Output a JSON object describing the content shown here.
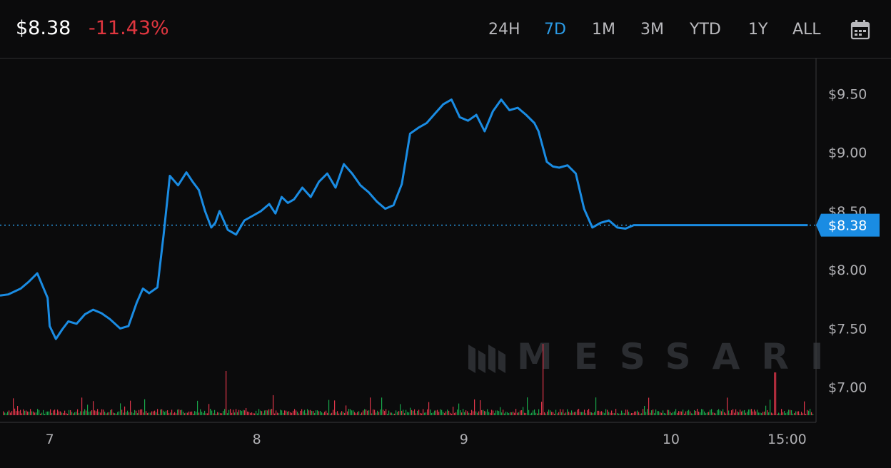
{
  "header": {
    "price": "$8.38",
    "change": "-11.43%",
    "ranges": [
      "24H",
      "7D",
      "1M",
      "3M",
      "YTD",
      "1Y",
      "ALL"
    ],
    "active_range": "7D",
    "calendar_icon": "calendar-icon"
  },
  "watermark": "MESSARI",
  "colors": {
    "line": "#1a8ce3",
    "negative": "#e0363f",
    "volume_up": "#18a64a",
    "volume_down": "#e0364a",
    "price_tag": "#1a8ce3"
  },
  "chart_data": {
    "type": "line",
    "title": "",
    "xlabel": "",
    "ylabel": "",
    "x_ticks": [
      "7",
      "8",
      "9",
      "10",
      "15:00"
    ],
    "x_tick_positions_days": [
      0,
      1,
      2,
      3,
      3.56
    ],
    "y_ticks": [
      "$7.00",
      "$7.50",
      "$8.00",
      "$8.50",
      "$9.00",
      "$9.50"
    ],
    "y_tick_values": [
      7.0,
      7.5,
      8.0,
      8.5,
      9.0,
      9.5
    ],
    "ylim": [
      6.7,
      9.8
    ],
    "xlim_days": [
      -0.24,
      3.7
    ],
    "current_price": 8.38,
    "current_price_label": "$8.38",
    "series": [
      {
        "x": [
          -0.24,
          -0.2,
          -0.14,
          -0.1,
          -0.06,
          -0.01,
          0.0,
          0.03,
          0.06,
          0.09,
          0.13,
          0.17,
          0.21,
          0.25,
          0.29,
          0.34,
          0.38,
          0.42,
          0.45,
          0.48,
          0.52,
          0.55,
          0.58,
          0.62,
          0.66,
          0.69,
          0.72,
          0.75,
          0.78,
          0.8,
          0.82,
          0.86,
          0.9,
          0.94,
          0.98,
          1.02,
          1.06,
          1.09,
          1.12,
          1.15,
          1.18,
          1.22,
          1.26,
          1.3,
          1.34,
          1.38,
          1.42,
          1.46,
          1.5,
          1.54,
          1.58,
          1.62,
          1.66,
          1.7,
          1.74,
          1.78,
          1.82,
          1.86,
          1.9,
          1.94,
          1.98,
          2.02,
          2.06,
          2.1,
          2.14,
          2.18,
          2.22,
          2.26,
          2.3,
          2.34,
          2.36,
          2.38,
          2.4,
          2.43,
          2.46,
          2.5,
          2.54,
          2.58,
          2.62,
          2.66,
          2.7,
          2.74,
          2.78,
          2.82,
          2.86,
          2.9,
          2.94,
          2.98,
          3.0,
          3.04,
          3.08,
          3.12,
          3.16,
          3.2,
          3.24,
          3.28,
          3.32,
          3.36,
          3.4,
          3.44,
          3.48,
          3.5,
          3.53,
          3.56,
          3.59,
          3.62,
          3.64,
          3.66
        ],
        "y": [
          7.78,
          7.79,
          7.84,
          7.9,
          7.97,
          7.76,
          7.52,
          7.41,
          7.49,
          7.56,
          7.54,
          7.62,
          7.66,
          7.63,
          7.58,
          7.5,
          7.52,
          7.72,
          7.84,
          7.8,
          7.85,
          8.3,
          8.8,
          8.72,
          8.83,
          8.75,
          8.68,
          8.5,
          8.36,
          8.4,
          8.5,
          8.34,
          8.3,
          8.42,
          8.46,
          8.5,
          8.56,
          8.48,
          8.62,
          8.57,
          8.6,
          8.7,
          8.62,
          8.75,
          8.82,
          8.7,
          8.9,
          8.82,
          8.72,
          8.66,
          8.58,
          8.52,
          8.55,
          8.73,
          9.16,
          9.21,
          9.25,
          9.33,
          9.41,
          9.45,
          9.3,
          9.27,
          9.32,
          9.18,
          9.35,
          9.45,
          9.36,
          9.38,
          9.32,
          9.25,
          9.18,
          9.05,
          8.92,
          8.88,
          8.87,
          8.89,
          8.82,
          8.52,
          8.36,
          8.4,
          8.42,
          8.36,
          8.35,
          8.38,
          8.38,
          8.38,
          8.38,
          8.38,
          8.38,
          8.38,
          8.38,
          8.38,
          8.38,
          8.38,
          8.38,
          8.38,
          8.38,
          8.38,
          8.38,
          8.38,
          8.38,
          8.38,
          8.38,
          8.38,
          8.38,
          8.38,
          8.38,
          8.38
        ]
      }
    ]
  }
}
